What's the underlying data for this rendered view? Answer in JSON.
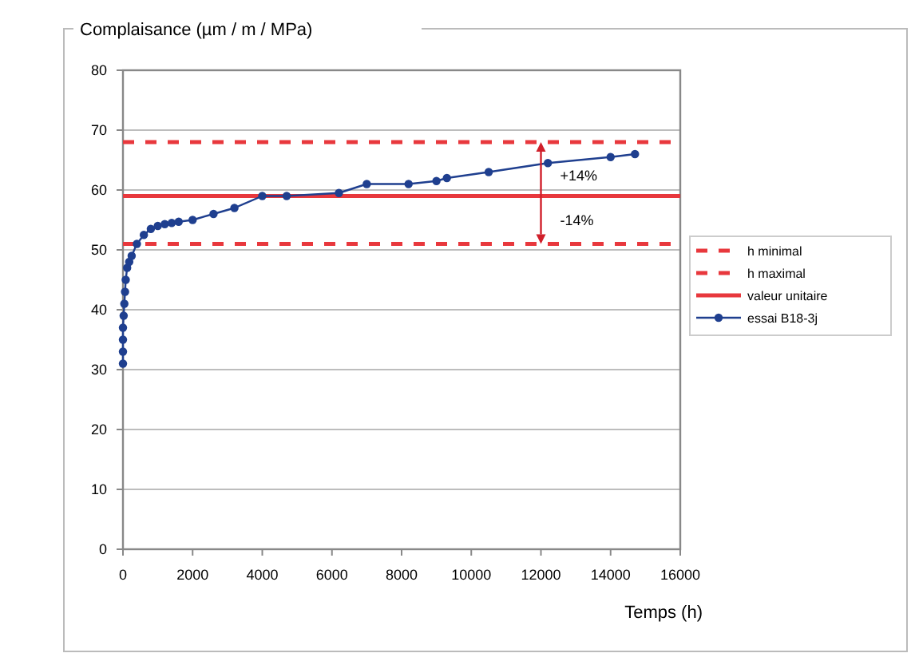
{
  "chart_data": {
    "type": "line",
    "ylabel": "Complaisance (µm / m / MPa)",
    "xlabel": "Temps (h)",
    "xlim": [
      0,
      16000
    ],
    "xticks": [
      0,
      2000,
      4000,
      6000,
      8000,
      10000,
      12000,
      14000,
      16000
    ],
    "ylim": [
      0,
      80
    ],
    "yticks": [
      0,
      10,
      20,
      30,
      40,
      50,
      60,
      70,
      80
    ],
    "grid": "y",
    "legend": "right",
    "series": [
      {
        "name": "h minimal",
        "color": "#e8383d",
        "x": [
          0,
          16000
        ],
        "values": [
          51,
          51
        ],
        "line_style": "dashed",
        "marker": "none"
      },
      {
        "name": "h maximal",
        "color": "#e8383d",
        "x": [
          0,
          16000
        ],
        "values": [
          68,
          68
        ],
        "line_style": "dashed",
        "marker": "none"
      },
      {
        "name": "valeur unitaire",
        "color": "#e8383d",
        "x": [
          0,
          16000
        ],
        "values": [
          59,
          59
        ],
        "line_style": "solid",
        "marker": "none"
      },
      {
        "name": "essai B18-3j",
        "color": "#1f3f8f",
        "marker": "circle",
        "line_style": "solid",
        "x": [
          0,
          0,
          0,
          0,
          20,
          40,
          60,
          80,
          120,
          180,
          250,
          400,
          600,
          800,
          1000,
          1200,
          1400,
          1600,
          2000,
          2600,
          3200,
          4000,
          4700,
          6200,
          7000,
          8200,
          9000,
          9300,
          10500,
          12200,
          14000,
          14700
        ],
        "values": [
          31,
          33,
          35,
          37,
          39,
          41,
          43,
          45,
          47,
          48,
          49,
          51,
          52.5,
          53.5,
          54,
          54.3,
          54.5,
          54.7,
          55,
          56,
          57,
          59,
          59,
          59.5,
          61,
          61,
          61.5,
          62,
          63,
          64.5,
          65.5,
          66
        ]
      }
    ],
    "annotations": [
      "+14%",
      "-14%"
    ]
  }
}
